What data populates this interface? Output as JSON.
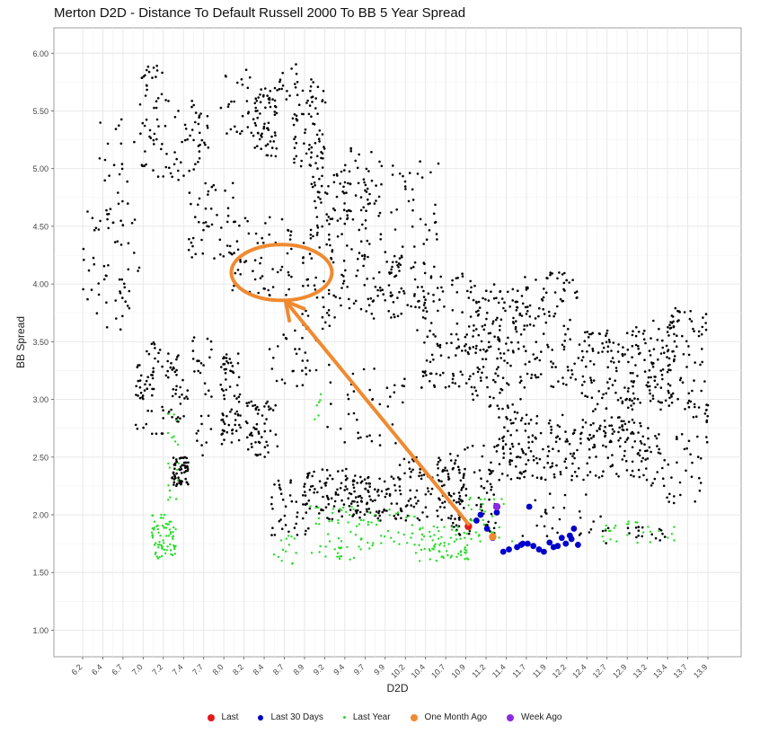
{
  "chart_data": {
    "type": "scatter",
    "title": "Merton D2D - Distance To Default Russell 2000 To BB 5 Year Spread",
    "xlabel": "D2D",
    "ylabel": "BB Spread",
    "xlim": [
      6.05,
      14.05
    ],
    "ylim": [
      0.77,
      6.22
    ],
    "x_ticks": [
      "6.2",
      "6.4",
      "6.7",
      "7.0",
      "7.2",
      "7.4",
      "7.7",
      "8.0",
      "8.2",
      "8.4",
      "8.7",
      "8.9",
      "9.2",
      "9.4",
      "9.7",
      "9.9",
      "10.2",
      "10.4",
      "10.7",
      "10.9",
      "11.2",
      "11.4",
      "11.7",
      "11.9",
      "12.2",
      "12.4",
      "12.7",
      "12.9",
      "13.2",
      "13.4",
      "13.7",
      "13.9"
    ],
    "y_ticks": [
      "1.00",
      "1.50",
      "2.00",
      "2.50",
      "3.00",
      "3.50",
      "4.00",
      "4.50",
      "5.00",
      "5.50",
      "6.00"
    ],
    "grid": true,
    "legend_position": "bottom",
    "series": [
      {
        "name": "Last",
        "color": "#e31a1c",
        "points": [
          [
            10.95,
            1.9
          ]
        ]
      },
      {
        "name": "Last 30 Days",
        "color": "#0000cc",
        "points": [
          [
            11.05,
            1.95
          ],
          [
            11.1,
            2.0
          ],
          [
            11.18,
            1.88
          ],
          [
            11.25,
            1.8
          ],
          [
            11.3,
            2.02
          ],
          [
            11.38,
            1.68
          ],
          [
            11.45,
            1.7
          ],
          [
            11.55,
            1.72
          ],
          [
            11.62,
            1.75
          ],
          [
            11.68,
            1.75
          ],
          [
            11.75,
            1.73
          ],
          [
            11.82,
            1.7
          ],
          [
            11.88,
            1.68
          ],
          [
            12.0,
            1.72
          ],
          [
            12.05,
            1.73
          ],
          [
            12.1,
            1.8
          ],
          [
            12.15,
            1.75
          ],
          [
            12.2,
            1.82
          ],
          [
            12.25,
            1.88
          ],
          [
            12.3,
            1.74
          ],
          [
            12.22,
            1.79
          ],
          [
            11.95,
            1.76
          ],
          [
            11.7,
            2.07
          ],
          [
            11.6,
            1.74
          ]
        ]
      },
      {
        "name": "Last Year",
        "color": "#22dd22",
        "clusters": [
          {
            "x": [
              7.05,
              7.35
            ],
            "y": [
              1.62,
              2.0
            ],
            "n": 70
          },
          {
            "x": [
              7.25,
              7.4
            ],
            "y": [
              2.0,
              2.9
            ],
            "n": 18
          },
          {
            "x": [
              8.55,
              8.85
            ],
            "y": [
              1.57,
              1.82
            ],
            "n": 14
          },
          {
            "x": [
              9.0,
              9.6
            ],
            "y": [
              1.6,
              2.1
            ],
            "n": 45
          },
          {
            "x": [
              9.6,
              10.3
            ],
            "y": [
              1.7,
              2.05
            ],
            "n": 40
          },
          {
            "x": [
              10.3,
              10.95
            ],
            "y": [
              1.6,
              1.9
            ],
            "n": 70
          },
          {
            "x": [
              10.95,
              11.5
            ],
            "y": [
              1.75,
              2.15
            ],
            "n": 30
          },
          {
            "x": [
              12.6,
              13.5
            ],
            "y": [
              1.75,
              1.95
            ],
            "n": 26
          },
          {
            "x": [
              9.05,
              9.15
            ],
            "y": [
              2.8,
              3.05
            ],
            "n": 6
          }
        ]
      },
      {
        "name": "One Month Ago",
        "color": "#f08a30",
        "points": [
          [
            11.25,
            1.81
          ]
        ]
      },
      {
        "name": "Week Ago",
        "color": "#8a2be2",
        "points": [
          [
            11.3,
            2.07
          ]
        ]
      }
    ],
    "background_points": {
      "color": "#000000",
      "clusters": [
        {
          "x": [
            6.2,
            6.9
          ],
          "y": [
            3.6,
            4.7
          ],
          "n": 60
        },
        {
          "x": [
            6.35,
            6.85
          ],
          "y": [
            4.6,
            5.5
          ],
          "n": 20
        },
        {
          "x": [
            6.9,
            7.2
          ],
          "y": [
            4.9,
            5.9
          ],
          "n": 45
        },
        {
          "x": [
            7.2,
            7.75
          ],
          "y": [
            4.9,
            5.6
          ],
          "n": 50
        },
        {
          "x": [
            7.5,
            8.1
          ],
          "y": [
            4.2,
            4.9
          ],
          "n": 45
        },
        {
          "x": [
            7.9,
            8.35
          ],
          "y": [
            5.3,
            5.9
          ],
          "n": 30
        },
        {
          "x": [
            8.3,
            8.6
          ],
          "y": [
            5.1,
            5.7
          ],
          "n": 60
        },
        {
          "x": [
            8.6,
            8.85
          ],
          "y": [
            5.4,
            5.95
          ],
          "n": 15
        },
        {
          "x": [
            8.8,
            9.2
          ],
          "y": [
            5.0,
            5.8
          ],
          "n": 70
        },
        {
          "x": [
            9.0,
            9.5
          ],
          "y": [
            4.4,
            5.0
          ],
          "n": 60
        },
        {
          "x": [
            9.4,
            9.9
          ],
          "y": [
            4.3,
            5.2
          ],
          "n": 55
        },
        {
          "x": [
            10.0,
            10.6
          ],
          "y": [
            4.1,
            5.1
          ],
          "n": 40
        },
        {
          "x": [
            8.0,
            8.8
          ],
          "y": [
            3.9,
            4.6
          ],
          "n": 60
        },
        {
          "x": [
            8.9,
            9.3
          ],
          "y": [
            3.6,
            4.4
          ],
          "n": 45
        },
        {
          "x": [
            9.3,
            10.3
          ],
          "y": [
            3.7,
            4.3
          ],
          "n": 90
        },
        {
          "x": [
            10.3,
            11.0
          ],
          "y": [
            3.1,
            4.1
          ],
          "n": 110
        },
        {
          "x": [
            11.0,
            11.6
          ],
          "y": [
            2.9,
            4.0
          ],
          "n": 140
        },
        {
          "x": [
            11.6,
            12.3
          ],
          "y": [
            3.1,
            4.1
          ],
          "n": 110
        },
        {
          "x": [
            12.3,
            13.0
          ],
          "y": [
            2.7,
            3.6
          ],
          "n": 130
        },
        {
          "x": [
            13.0,
            13.5
          ],
          "y": [
            2.9,
            3.7
          ],
          "n": 90
        },
        {
          "x": [
            13.4,
            13.9
          ],
          "y": [
            2.8,
            3.8
          ],
          "n": 70
        },
        {
          "x": [
            6.85,
            7.2
          ],
          "y": [
            2.7,
            3.5
          ],
          "n": 55
        },
        {
          "x": [
            7.2,
            7.5
          ],
          "y": [
            2.8,
            3.4
          ],
          "n": 40
        },
        {
          "x": [
            7.55,
            7.8
          ],
          "y": [
            2.5,
            3.6
          ],
          "n": 30
        },
        {
          "x": [
            7.9,
            8.15
          ],
          "y": [
            2.6,
            3.4
          ],
          "n": 70
        },
        {
          "x": [
            8.2,
            8.6
          ],
          "y": [
            2.5,
            3.0
          ],
          "n": 55
        },
        {
          "x": [
            8.5,
            9.1
          ],
          "y": [
            3.1,
            3.6
          ],
          "n": 30
        },
        {
          "x": [
            7.3,
            7.5
          ],
          "y": [
            2.25,
            2.5
          ],
          "n": 60
        },
        {
          "x": [
            8.5,
            9.0
          ],
          "y": [
            1.8,
            2.3
          ],
          "n": 40
        },
        {
          "x": [
            8.9,
            9.5
          ],
          "y": [
            1.95,
            2.4
          ],
          "n": 70
        },
        {
          "x": [
            9.5,
            10.1
          ],
          "y": [
            1.95,
            2.35
          ],
          "n": 90
        },
        {
          "x": [
            10.1,
            10.9
          ],
          "y": [
            1.95,
            2.5
          ],
          "n": 110
        },
        {
          "x": [
            10.7,
            11.3
          ],
          "y": [
            1.8,
            2.6
          ],
          "n": 80
        },
        {
          "x": [
            11.3,
            12.2
          ],
          "y": [
            2.3,
            2.9
          ],
          "n": 120
        },
        {
          "x": [
            12.2,
            13.2
          ],
          "y": [
            2.3,
            2.8
          ],
          "n": 110
        },
        {
          "x": [
            13.2,
            13.9
          ],
          "y": [
            2.1,
            2.7
          ],
          "n": 45
        },
        {
          "x": [
            11.6,
            12.6
          ],
          "y": [
            1.8,
            2.2
          ],
          "n": 25
        },
        {
          "x": [
            12.6,
            13.4
          ],
          "y": [
            1.75,
            1.9
          ],
          "n": 20
        },
        {
          "x": [
            9.2,
            10.2
          ],
          "y": [
            2.6,
            3.3
          ],
          "n": 40
        }
      ]
    },
    "annotations": [
      {
        "type": "ellipse",
        "color": "#f08a30",
        "center": [
          8.65,
          4.1
        ],
        "label": ""
      },
      {
        "type": "arrow",
        "color": "#f08a30",
        "from": [
          10.95,
          1.92
        ],
        "to": [
          8.7,
          3.85
        ],
        "label": ""
      }
    ]
  },
  "legend": {
    "items": [
      {
        "label": "Last",
        "color": "#e31a1c"
      },
      {
        "label": "Last 30 Days",
        "color": "#0000cc"
      },
      {
        "label": "Last Year",
        "color": "#22dd22"
      },
      {
        "label": "One Month Ago",
        "color": "#f08a30"
      },
      {
        "label": "Week Ago",
        "color": "#8a2be2"
      }
    ]
  }
}
